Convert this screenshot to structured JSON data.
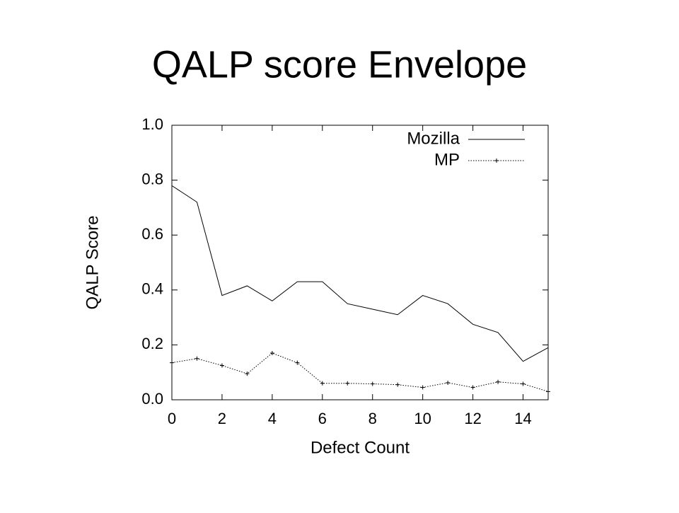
{
  "title": "QALP score Envelope",
  "chart_data": {
    "type": "line",
    "x_label": "Defect Count",
    "y_label": "QALP Score",
    "x": [
      0,
      1,
      2,
      3,
      4,
      5,
      6,
      7,
      8,
      9,
      10,
      11,
      12,
      13,
      14,
      15
    ],
    "series": [
      {
        "name": "Mozilla",
        "color": "#000000",
        "line_style": "solid",
        "values": [
          0.78,
          0.72,
          0.38,
          0.415,
          0.36,
          0.43,
          0.43,
          0.35,
          0.33,
          0.31,
          0.38,
          0.35,
          0.275,
          0.245,
          0.14,
          0.19
        ]
      },
      {
        "name": "MP",
        "color": "#000000",
        "line_style": "dotted",
        "marker": "plus",
        "values": [
          0.135,
          0.15,
          0.125,
          0.095,
          0.17,
          0.135,
          0.06,
          0.06,
          0.058,
          0.055,
          0.045,
          0.062,
          0.045,
          0.065,
          0.058,
          0.03
        ]
      }
    ],
    "xlim": [
      0,
      15
    ],
    "xticks": [
      0,
      2,
      4,
      6,
      8,
      10,
      12,
      14
    ],
    "ylim": [
      0,
      1
    ],
    "yticks": [
      {
        "value": 0,
        "label": "0.0"
      },
      0.2,
      0.4,
      0.6,
      0.8,
      {
        "value": 1,
        "label": "1.0"
      }
    ],
    "legend": "top-right"
  }
}
